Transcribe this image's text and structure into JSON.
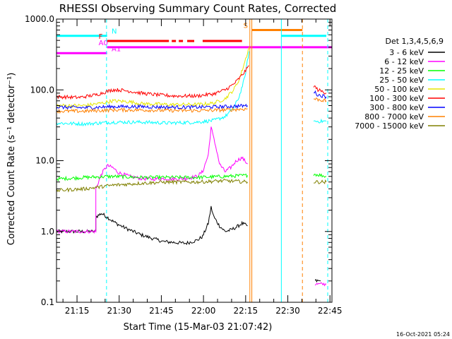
{
  "chart_data": {
    "type": "line",
    "title": "RHESSI Observing Summary Count Rates, Corrected",
    "xlabel": "Start Time (15-Mar-03 21:07:42)",
    "ylabel": "Corrected Count Rate (s⁻¹ detector⁻¹)",
    "y_scale": "log",
    "ylim": [
      0.1,
      1000
    ],
    "xlim_minutes": [
      0,
      98
    ],
    "x_ticks": [
      {
        "min": 7.3,
        "label": "21:15"
      },
      {
        "min": 22.3,
        "label": "21:30"
      },
      {
        "min": 37.3,
        "label": "21:45"
      },
      {
        "min": 52.3,
        "label": "22:00"
      },
      {
        "min": 67.3,
        "label": "22:15"
      },
      {
        "min": 82.3,
        "label": "22:30"
      },
      {
        "min": 97.3,
        "label": "22:45"
      }
    ],
    "y_ticks": [
      {
        "value": 1000,
        "label": "1000.0"
      },
      {
        "value": 100,
        "label": "100.0"
      },
      {
        "value": 10,
        "label": "10.0"
      },
      {
        "value": 1,
        "label": "1.0"
      },
      {
        "value": 0.1,
        "label": "0.1"
      }
    ],
    "legend": {
      "placement": "right",
      "header": "Det 1,3,4,5,6,9"
    },
    "series": [
      {
        "name": "3 - 6 keV",
        "color": "#000000",
        "segments": [
          {
            "x": [
              0,
              14,
              14,
              16,
              18,
              20,
              22,
              26,
              30,
              34,
              38,
              42,
              46,
              50,
              52,
              54,
              55,
              56,
              58,
              60,
              62,
              64,
              66,
              68
            ],
            "y": [
              1.0,
              1.0,
              1.6,
              1.8,
              1.6,
              1.4,
              1.25,
              1.05,
              0.9,
              0.8,
              0.72,
              0.7,
              0.68,
              0.75,
              0.85,
              1.3,
              2.2,
              1.6,
              1.2,
              1.0,
              1.05,
              1.15,
              1.3,
              1.2
            ]
          },
          {
            "x": [
              92,
              94
            ],
            "y": [
              0.2,
              0.2
            ]
          }
        ]
      },
      {
        "name": "6 - 12 keV",
        "color": "#ff00ff",
        "segments": [
          {
            "x": [
              0,
              14,
              14,
              16,
              18,
              20,
              22,
              26,
              30,
              34,
              38,
              42,
              46,
              50,
              52,
              54,
              55,
              56,
              57,
              58,
              60,
              62,
              64,
              66,
              68
            ],
            "y": [
              1.0,
              1.0,
              4.0,
              6.5,
              8.5,
              8.0,
              6.8,
              6.0,
              5.6,
              5.5,
              5.6,
              5.5,
              5.6,
              6.0,
              7.0,
              12,
              30,
              20,
              14,
              9.0,
              7.0,
              8.0,
              10,
              11,
              9.0
            ]
          },
          {
            "x": [
              92,
              96
            ],
            "y": [
              0.18,
              0.18
            ]
          }
        ]
      },
      {
        "name": "12 - 25 keV",
        "color": "#00ff00",
        "segments": [
          {
            "x": [
              0,
              10,
              20,
              30,
              40,
              50,
              60,
              68
            ],
            "y": [
              5.5,
              5.8,
              6.0,
              5.8,
              5.8,
              5.8,
              6.0,
              6.2
            ]
          },
          {
            "x": [
              91.5,
              96
            ],
            "y": [
              6.5,
              6.0
            ]
          }
        ]
      },
      {
        "name": "25 - 50 keV",
        "color": "#00ffff",
        "segments": [
          {
            "x": [
              0,
              10,
              20,
              30,
              40,
              50,
              56,
              60,
              63,
              65,
              67,
              68.5
            ],
            "y": [
              34,
              33,
              35,
              35,
              34,
              35,
              37,
              42,
              55,
              80,
              150,
              350
            ]
          },
          {
            "x": [
              91.5,
              96
            ],
            "y": [
              36,
              36
            ]
          }
        ]
      },
      {
        "name": "50 - 100 keV",
        "color": "#e6e600",
        "segments": [
          {
            "x": [
              0,
              10,
              16,
              20,
              26,
              30,
              40,
              50,
              56,
              60,
              63,
              65,
              67,
              68.5
            ],
            "y": [
              60,
              60,
              65,
              70,
              68,
              64,
              62,
              62,
              65,
              75,
              100,
              140,
              250,
              400
            ]
          }
        ]
      },
      {
        "name": "100 - 300 keV",
        "color": "#ff0000",
        "segments": [
          {
            "x": [
              0,
              8,
              14,
              18,
              20,
              22,
              26,
              30,
              36,
              42,
              50,
              56,
              60,
              63,
              65,
              67,
              68.5
            ],
            "y": [
              80,
              78,
              85,
              95,
              100,
              100,
              96,
              90,
              85,
              82,
              82,
              88,
              100,
              120,
              145,
              180,
              220
            ]
          },
          {
            "x": [
              91.5,
              93,
              96
            ],
            "y": [
              115,
              100,
              90
            ]
          }
        ]
      },
      {
        "name": "300 - 800 keV",
        "color": "#0000ff",
        "segments": [
          {
            "x": [
              0,
              10,
              20,
              30,
              40,
              50,
              60,
              68
            ],
            "y": [
              57,
              56,
              58,
              58,
              57,
              57,
              58,
              60
            ]
          },
          {
            "x": [
              91.5,
              93,
              96
            ],
            "y": [
              95,
              85,
              80
            ]
          }
        ]
      },
      {
        "name": "800 - 7000 keV",
        "color": "#ff8000",
        "segments": [
          {
            "x": [
              0,
              10,
              20,
              30,
              40,
              50,
              60,
              68
            ],
            "y": [
              50,
              50,
              52,
              52,
              51,
              51,
              52,
              54
            ]
          },
          {
            "x": [
              91.5,
              94,
              96
            ],
            "y": [
              75,
              72,
              70
            ]
          }
        ]
      },
      {
        "name": "7000 - 15000 keV",
        "color": "#808000",
        "segments": [
          {
            "x": [
              0,
              10,
              20,
              30,
              40,
              50,
              60,
              68
            ],
            "y": [
              3.8,
              4.0,
              4.5,
              4.8,
              5.0,
              5.0,
              5.2,
              5.0
            ]
          },
          {
            "x": [
              91.5,
              96
            ],
            "y": [
              5.0,
              5.0
            ]
          }
        ]
      }
    ],
    "flags": [
      {
        "label": "N",
        "color": "#00ffff",
        "y": 580,
        "x_ranges": [
          [
            0,
            18
          ],
          [
            80,
            96
          ]
        ]
      },
      {
        "label": "F",
        "color": "#ff0000",
        "y": 490,
        "x_ranges": [
          [
            18,
            40
          ],
          [
            41,
            42.5
          ],
          [
            43.5,
            45
          ],
          [
            46.5,
            49
          ],
          [
            52,
            66
          ]
        ]
      },
      {
        "label": "A0",
        "color": "#ff00ff",
        "y": 400,
        "x_ranges": [
          [
            18,
            98
          ]
        ]
      },
      {
        "label": "A1",
        "color": "#ff00ff",
        "y": 330,
        "x_ranges": [
          [
            0,
            18
          ]
        ]
      },
      {
        "label": "S",
        "color": "#ff8000",
        "y": 700,
        "x_ranges": [
          [
            69.5,
            87.5
          ]
        ]
      }
    ],
    "vertical_markers": [
      {
        "x": 0,
        "color": "#00ffff",
        "style": "solid"
      },
      {
        "x": 17.8,
        "color": "#00ffff",
        "style": "dashed"
      },
      {
        "x": 68.8,
        "color": "#ff8000",
        "style": "solid"
      },
      {
        "x": 69.5,
        "color": "#ff8000",
        "style": "solid"
      },
      {
        "x": 80,
        "color": "#00ffff",
        "style": "solid"
      },
      {
        "x": 87.5,
        "color": "#ff8000",
        "style": "dashed"
      },
      {
        "x": 96.5,
        "color": "#00ffff",
        "style": "dashed"
      }
    ],
    "timestamp": "16-Oct-2021 05:24"
  }
}
